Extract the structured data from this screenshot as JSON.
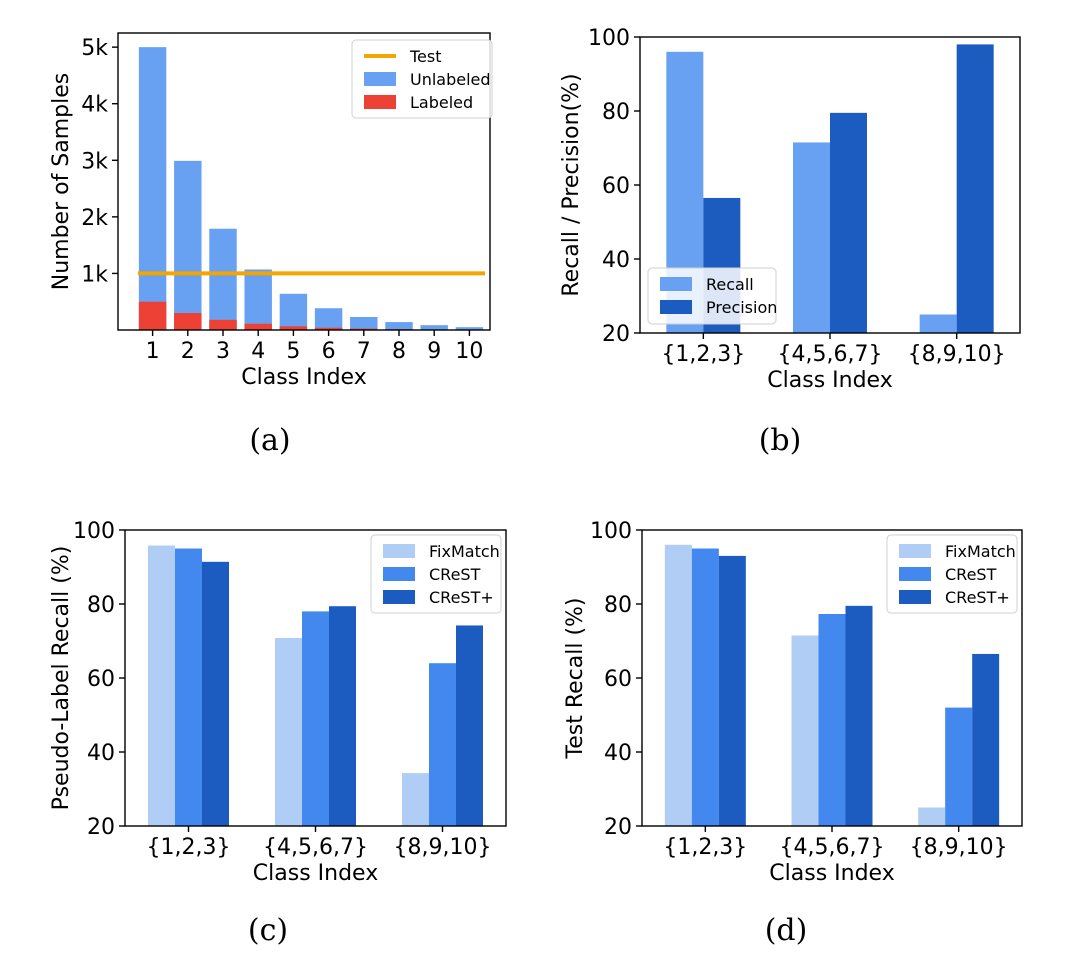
{
  "chart_data": [
    {
      "panel": "a",
      "caption": "(a)",
      "type": "bar",
      "title": "",
      "xlabel": "Class Index",
      "ylabel": "Number of Samples",
      "categories": [
        "1",
        "2",
        "3",
        "4",
        "5",
        "6",
        "7",
        "8",
        "9",
        "10"
      ],
      "ylim": [
        0,
        5250
      ],
      "yticks": [
        1000,
        2000,
        3000,
        4000,
        5000
      ],
      "ytick_labels": [
        "1k",
        "2k",
        "3k",
        "4k",
        "5k"
      ],
      "series": [
        {
          "name": "Unlabeled",
          "color": "#69a1f2",
          "values": [
            5000,
            2990,
            1790,
            1070,
            640,
            385,
            230,
            140,
            85,
            50
          ]
        },
        {
          "name": "Labeled",
          "color": "#ec4134",
          "values": [
            500,
            300,
            180,
            110,
            65,
            40,
            25,
            15,
            10,
            5
          ]
        }
      ],
      "lines": [
        {
          "name": "Test",
          "color": "#f4a500",
          "value": 1000
        }
      ],
      "legend": [
        "Test",
        "Unlabeled",
        "Labeled"
      ],
      "legend_position": "top-right"
    },
    {
      "panel": "b",
      "caption": "(b)",
      "type": "bar",
      "title": "",
      "xlabel": "Class Index",
      "ylabel": "Recall / Precision(%)",
      "categories": [
        "{1,2,3}",
        "{4,5,6,7}",
        "{8,9,10}"
      ],
      "ylim": [
        20,
        100
      ],
      "yticks": [
        20,
        40,
        60,
        80,
        100
      ],
      "series": [
        {
          "name": "Recall",
          "color": "#69a1f2",
          "values": [
            96,
            71.5,
            25
          ]
        },
        {
          "name": "Precision",
          "color": "#1c5bc0",
          "values": [
            56.5,
            79.5,
            98
          ]
        }
      ],
      "legend_position": "bottom-left"
    },
    {
      "panel": "c",
      "caption": "(c)",
      "type": "bar",
      "title": "",
      "xlabel": "Class Index",
      "ylabel": "Pseudo-Label Recall (%)",
      "categories": [
        "{1,2,3}",
        "{4,5,6,7}",
        "{8,9,10}"
      ],
      "ylim": [
        20,
        100
      ],
      "yticks": [
        20,
        40,
        60,
        80,
        100
      ],
      "series": [
        {
          "name": "FixMatch",
          "color": "#b0cdf6",
          "values": [
            95.8,
            70.8,
            34.3
          ]
        },
        {
          "name": "CReST",
          "color": "#4388ef",
          "values": [
            95,
            78,
            64
          ]
        },
        {
          "name": "CReST+",
          "color": "#1c5bc0",
          "values": [
            91.4,
            79.4,
            74.2
          ]
        }
      ],
      "legend_position": "top-right"
    },
    {
      "panel": "d",
      "caption": "(d)",
      "type": "bar",
      "title": "",
      "xlabel": "Class Index",
      "ylabel": "Test Recall (%)",
      "categories": [
        "{1,2,3}",
        "{4,5,6,7}",
        "{8,9,10}"
      ],
      "ylim": [
        20,
        100
      ],
      "yticks": [
        20,
        40,
        60,
        80,
        100
      ],
      "series": [
        {
          "name": "FixMatch",
          "color": "#b0cdf6",
          "values": [
            96,
            71.5,
            25
          ]
        },
        {
          "name": "CReST",
          "color": "#4388ef",
          "values": [
            95,
            77.3,
            52
          ]
        },
        {
          "name": "CReST+",
          "color": "#1c5bc0",
          "values": [
            93,
            79.5,
            66.5
          ]
        }
      ],
      "legend_position": "top-right"
    }
  ]
}
